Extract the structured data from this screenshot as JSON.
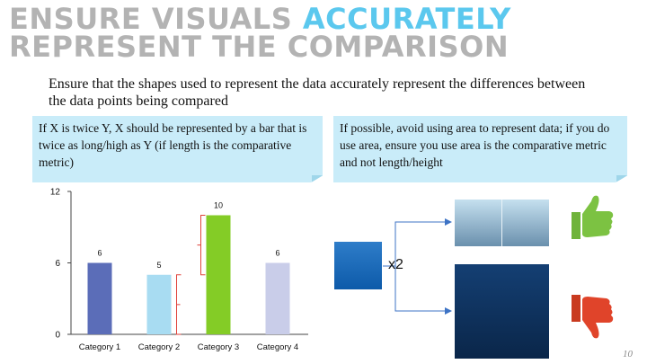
{
  "title": {
    "part1": "ENSURE VISUALS ",
    "part2": "ACCURATELY",
    "line2": "REPRESENT THE COMPARISON"
  },
  "subtitle": "Ensure that the shapes used to represent the data accurately represent the differences between the data points being compared",
  "notes": {
    "left": "If X is twice Y, X should be represented by a bar that is twice as long/high as Y (if length is the comparative metric)",
    "right": "If possible, avoid using area to represent data; if you do use area, ensure you use area is the comparative metric and not length/height"
  },
  "chart_data": {
    "type": "bar",
    "categories": [
      "Category 1",
      "Category 2",
      "Category 3",
      "Category 4"
    ],
    "values": [
      6,
      5,
      10,
      6
    ],
    "colors": [
      "#5b6db8",
      "#a8dcf2",
      "#84cc26",
      "#c9cde9"
    ],
    "ylim": [
      0,
      12
    ],
    "yticks": [
      0,
      6,
      12
    ],
    "bracket_color": "#e0423a"
  },
  "illustration": {
    "multiplier": "x2",
    "good_icon": "thumbs-up-icon",
    "bad_icon": "thumbs-down-icon"
  },
  "page_number": "10"
}
